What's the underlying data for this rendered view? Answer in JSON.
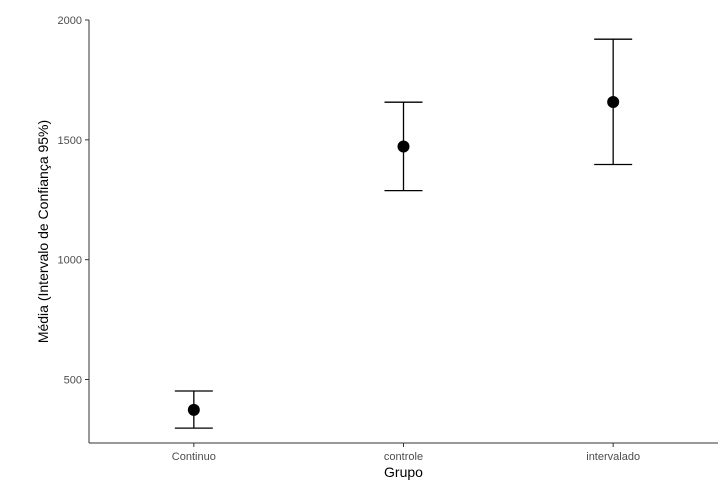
{
  "chart_data": {
    "type": "scatter",
    "title": "",
    "xlabel": "Grupo",
    "ylabel": "Média (Intervalo de Confiança 95%)",
    "categories": [
      "Continuo",
      "controle",
      "intervalado"
    ],
    "series": [
      {
        "values": [
          373,
          1472,
          1658
        ],
        "ci_lower": [
          297,
          1288,
          1397
        ],
        "ci_upper": [
          452,
          1657,
          1920
        ]
      }
    ],
    "yticks": [
      "500",
      "1000",
      "1500",
      "2000"
    ],
    "ylim": [
      235,
      2000
    ],
    "grid": false,
    "legend": "none",
    "point_color": "#000000",
    "errorbar_color": "#000000",
    "axis_color": "#333333"
  }
}
